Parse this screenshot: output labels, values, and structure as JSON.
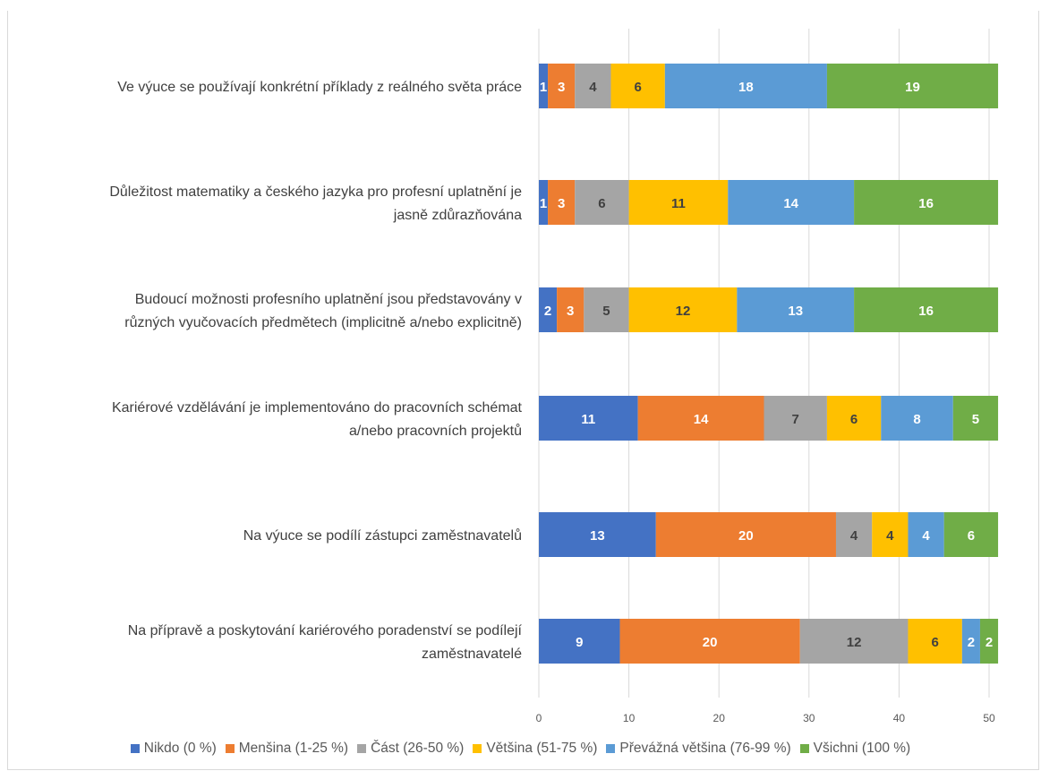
{
  "chart_data": {
    "type": "bar",
    "orientation": "horizontal",
    "stacked": true,
    "title": "",
    "xlabel": "",
    "ylabel": "",
    "xlim": [
      0,
      50
    ],
    "x_ticks": [
      "0",
      "10",
      "20",
      "30",
      "40",
      "50"
    ],
    "grid": "vertical",
    "legend_position": "bottom",
    "categories": [
      "Ve výuce se používají konkrétní příklady z reálného světa práce",
      "Důležitost matematiky a českého jazyka pro profesní uplatnění je jasně zdůrazňována",
      "Budoucí možnosti profesního uplatnění jsou představovány v různých vyučovacích předmětech (implicitně a/nebo explicitně)",
      "Kariérové vzdělávání je implementováno do pracovních schémat a/nebo pracovních projektů",
      "Na výuce se podílí zástupci zaměstnavatelů",
      "Na přípravě a poskytování kariérového poradenství se podílejí zaměstnavatelé"
    ],
    "category_lines": [
      [
        "Ve výuce se používají konkrétní příklady z reálného světa práce"
      ],
      [
        "Důležitost matematiky a českého jazyka pro profesní uplatnění je",
        "jasně zdůrazňována"
      ],
      [
        "Budoucí možnosti profesního uplatnění jsou představovány v",
        "různých vyučovacích předmětech (implicitně a/nebo explicitně)"
      ],
      [
        "Kariérové vzdělávání je implementováno do pracovních schémat",
        "a/nebo pracovních projektů"
      ],
      [
        "Na výuce se podílí zástupci zaměstnavatelů"
      ],
      [
        "Na přípravě a poskytování kariérového poradenství se podílejí",
        "zaměstnavatelé"
      ]
    ],
    "series": [
      {
        "name": "Nikdo (0 %)",
        "color": "#4472c4",
        "values": [
          1,
          1,
          2,
          11,
          13,
          9
        ]
      },
      {
        "name": "Menšina (1-25 %)",
        "color": "#ed7d31",
        "values": [
          3,
          3,
          3,
          14,
          20,
          20
        ]
      },
      {
        "name": "Část (26-50 %)",
        "color": "#a5a5a5",
        "values": [
          4,
          6,
          5,
          7,
          4,
          12
        ]
      },
      {
        "name": "Většina (51-75 %)",
        "color": "#ffc000",
        "values": [
          6,
          11,
          12,
          6,
          4,
          6
        ]
      },
      {
        "name": "Převážná většina (76-99 %)",
        "color": "#5b9bd5",
        "values": [
          18,
          14,
          13,
          8,
          4,
          2
        ]
      },
      {
        "name": "Všichni (100 %)",
        "color": "#70ad47",
        "values": [
          19,
          16,
          16,
          5,
          6,
          2
        ]
      }
    ],
    "label_colors": {
      "dark": "#404040",
      "light": "#ffffff"
    }
  }
}
